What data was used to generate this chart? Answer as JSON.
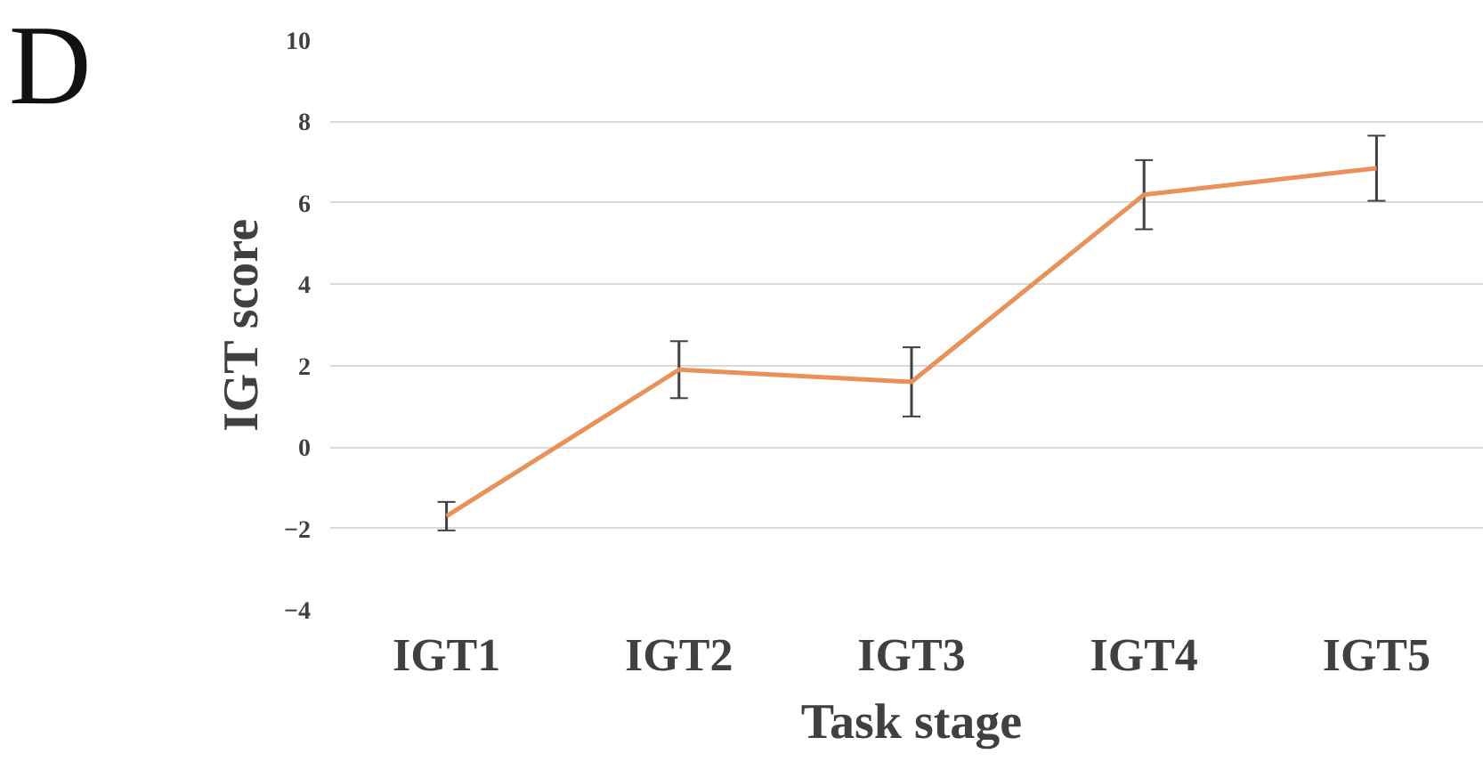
{
  "chart_data": {
    "type": "line",
    "annotations": [
      "D"
    ],
    "xlabel": "Task stage",
    "ylabel": "IGT score",
    "categories": [
      "IGT1",
      "IGT2",
      "IGT3",
      "IGT4",
      "IGT5"
    ],
    "series": [
      {
        "color": "#e8925a",
        "values": [
          -1.7,
          1.9,
          1.6,
          6.2,
          6.85
        ],
        "errors": [
          0.35,
          0.7,
          0.85,
          0.85,
          0.8
        ]
      }
    ],
    "ylim": [
      -4,
      10
    ],
    "yticks": [
      -4,
      -2,
      0,
      2,
      4,
      6,
      8,
      10
    ],
    "grid": "y",
    "marker": "none",
    "line_style": "solid"
  }
}
